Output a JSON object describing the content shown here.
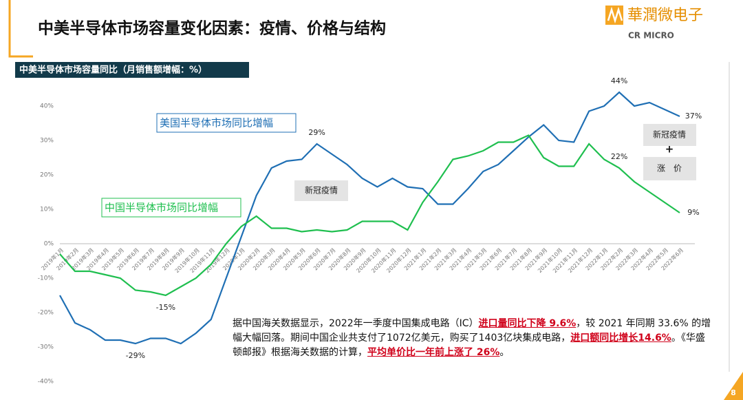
{
  "header": {
    "title": "中美半导体市场容量变化因素：疫情、价格与结构",
    "logo_cn": "華潤微电子",
    "logo_en": "CR MICRO"
  },
  "chart_data": {
    "type": "line",
    "title": "中美半导体市场容量同比（月销售额增幅：%）",
    "categories": [
      "2019年1月",
      "2019年2月",
      "2019年3月",
      "2019年4月",
      "2019年5月",
      "2019年6月",
      "2019年7月",
      "2019年8月",
      "2019年9月",
      "2019年10月",
      "2019年11月",
      "2019年12月",
      "2020年1月",
      "2020年2月",
      "2020年3月",
      "2020年4月",
      "2020年5月",
      "2020年6月",
      "2020年7月",
      "2020年8月",
      "2020年9月",
      "2020年10月",
      "2020年11月",
      "2020年12月",
      "2021年1月",
      "2021年2月",
      "2021年3月",
      "2021年4月",
      "2021年5月",
      "2021年6月",
      "2021年7月",
      "2021年8月",
      "2021年9月",
      "2021年10月",
      "2021年11月",
      "2021年12月",
      "2022年1月",
      "2022年2月",
      "2022年3月",
      "2022年4月",
      "2022年5月",
      "2022年6月"
    ],
    "series": [
      {
        "name": "美国半导体市场同比增幅",
        "color": "#1f6fb4",
        "values": [
          -15,
          -23,
          -25,
          -28,
          -28,
          -29,
          -27.5,
          -27.5,
          -29,
          -26,
          -22,
          -10,
          2,
          14,
          22,
          24,
          24.5,
          29,
          26,
          23,
          19,
          16.5,
          19,
          16.5,
          16,
          11.5,
          11.5,
          16,
          21,
          23,
          27,
          31,
          34.5,
          30,
          29.5,
          38.5,
          40,
          44,
          40,
          41,
          39,
          37
        ],
        "value_labels": [
          null,
          null,
          null,
          null,
          null,
          "-29%",
          null,
          null,
          null,
          null,
          null,
          null,
          null,
          null,
          null,
          null,
          null,
          "29%",
          null,
          null,
          null,
          null,
          null,
          null,
          null,
          null,
          null,
          null,
          null,
          null,
          null,
          null,
          null,
          null,
          null,
          null,
          null,
          "44%",
          null,
          null,
          null,
          "37%"
        ]
      },
      {
        "name": "中国半导体市场同比增幅",
        "color": "#1fbf4f",
        "values": [
          -3,
          -8,
          -8,
          -9,
          -10,
          -13.5,
          -14,
          -15,
          -12.5,
          -10,
          -6,
          0,
          5,
          8,
          4.5,
          4.5,
          3.5,
          4,
          3.5,
          4,
          6.5,
          6.5,
          6.5,
          4,
          12,
          18,
          24.5,
          25.5,
          27,
          29.5,
          29.5,
          31.5,
          25,
          22.5,
          22.5,
          29,
          24.5,
          22,
          18,
          15,
          12,
          9
        ],
        "value_labels": [
          null,
          null,
          null,
          null,
          null,
          null,
          null,
          "-15%",
          null,
          null,
          null,
          null,
          null,
          null,
          null,
          null,
          null,
          null,
          null,
          null,
          null,
          null,
          null,
          null,
          null,
          null,
          null,
          null,
          null,
          null,
          null,
          null,
          null,
          null,
          null,
          null,
          null,
          "22%",
          null,
          null,
          null,
          "9%"
        ]
      }
    ],
    "ylim": [
      -40,
      40
    ],
    "yticks": [
      {
        "value": -40,
        "label": "-40%"
      },
      {
        "value": -30,
        "label": "-30%"
      },
      {
        "value": -20,
        "label": "-20%"
      },
      {
        "value": -10,
        "label": "-10%"
      },
      {
        "value": 0,
        "label": "0%"
      },
      {
        "value": 10,
        "label": "10%"
      },
      {
        "value": 20,
        "label": "20%"
      },
      {
        "value": 30,
        "label": "30%"
      },
      {
        "value": 40,
        "label": "40%"
      }
    ],
    "annotations": [
      "新冠疫情",
      "新冠疫情",
      "+",
      "涨　价"
    ]
  },
  "note": [
    {
      "text": "据中国海关数据显示，2022年一季度中国集成电路（IC）",
      "highlight": false
    },
    {
      "text": "进口量同比下降 9.6%",
      "highlight": true
    },
    {
      "text": "，较 2021 年同期 33.6% 的增幅大幅回落。期间中国企业共支付了1072亿美元，购买了1403亿块集成电路，",
      "highlight": false
    },
    {
      "text": "进口额同比增长14.6%",
      "highlight": true
    },
    {
      "text": "。《华盛顿邮报》根据海关数据的计算，",
      "highlight": false
    },
    {
      "text": "平均单价比一年前上涨了 26%",
      "highlight": true
    },
    {
      "text": "。",
      "highlight": false
    }
  ],
  "page_number": "8"
}
